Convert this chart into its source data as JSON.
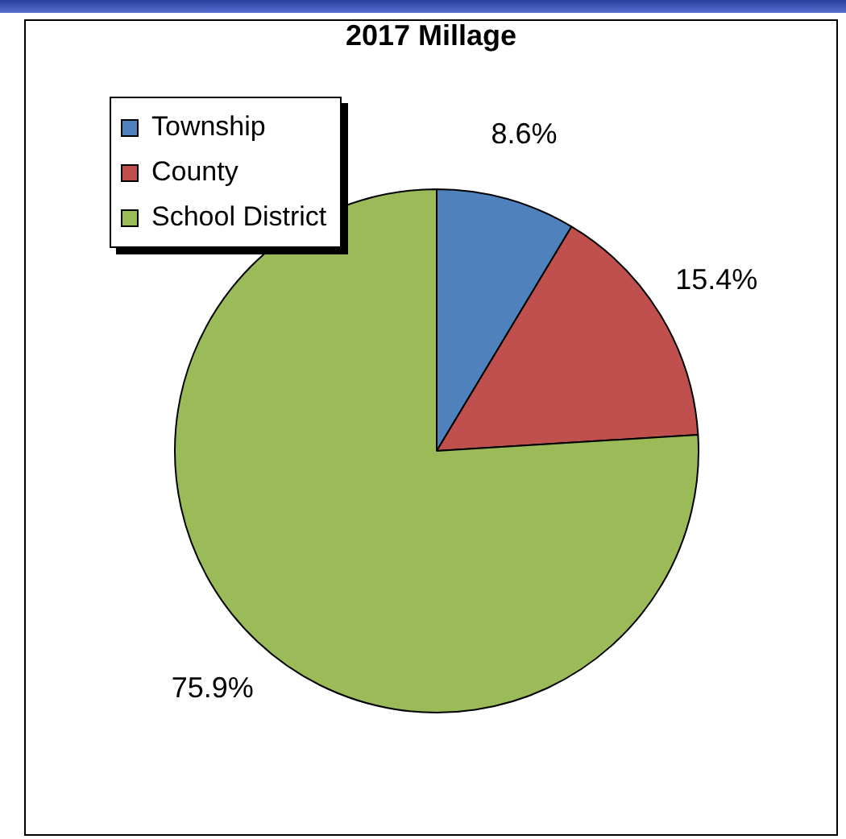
{
  "chart_data": {
    "type": "pie",
    "title": "2017 Millage",
    "categories": [
      "Township",
      "County",
      "School District"
    ],
    "values": [
      8.6,
      15.4,
      75.9
    ],
    "colors": [
      "#4f81bd",
      "#c0504d",
      "#9bbb59"
    ],
    "value_labels": [
      "8.6%",
      "15.4%",
      "75.9%"
    ],
    "legend": "top left"
  }
}
